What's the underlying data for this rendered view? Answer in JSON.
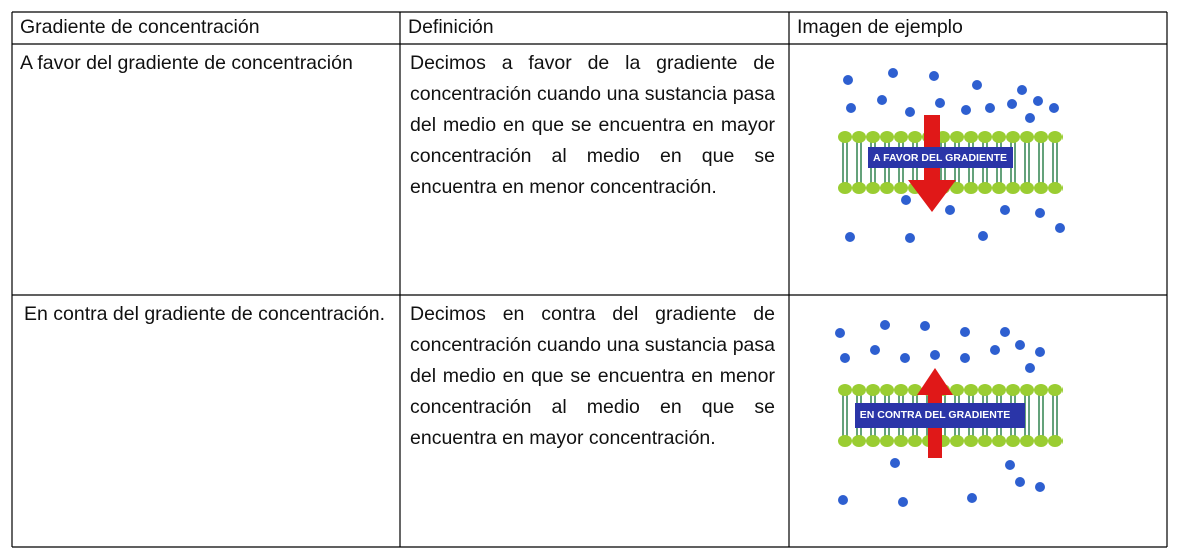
{
  "table": {
    "headers": [
      "Gradiente de concentración",
      "Definición",
      "Imagen de ejemplo"
    ],
    "rows": [
      {
        "term": "A favor del gradiente de concentración",
        "definition": "Decimos a favor de la gradiente de concentración cuando una sustancia pasa del medio en que se encuentra en mayor concentración al medio en que se encuentra en menor concentración.",
        "image_label": "A FAVOR DEL GRADIENTE"
      },
      {
        "term": "En contra del gradiente de concentración.",
        "definition": "Decimos en contra del gradiente de concentración cuando una sustancia pasa del medio en que se encuentra en menor concentración al medio en que se encuentra en mayor concentración.",
        "image_label": "EN CONTRA DEL GRADIENTE"
      }
    ]
  }
}
